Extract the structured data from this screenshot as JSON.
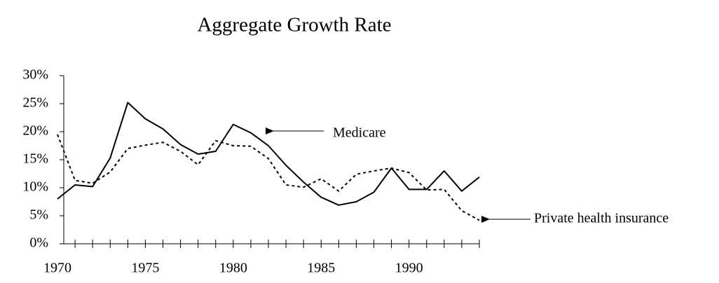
{
  "chart_data": {
    "type": "line",
    "title": "Aggregate Growth Rate",
    "x": [
      1970,
      1971,
      1972,
      1973,
      1974,
      1975,
      1976,
      1977,
      1978,
      1979,
      1980,
      1981,
      1982,
      1983,
      1984,
      1985,
      1986,
      1987,
      1988,
      1989,
      1990,
      1991,
      1992,
      1993,
      1994
    ],
    "series": [
      {
        "name": "Medicare",
        "color": "#000000",
        "style": "solid",
        "values": [
          8,
          10.5,
          10.2,
          15.3,
          25.2,
          22.3,
          20.5,
          17.7,
          16,
          16.5,
          21.3,
          19.8,
          17.5,
          14,
          11,
          8.3,
          6.9,
          7.5,
          9.2,
          13.5,
          9.7,
          9.7,
          13,
          9.4,
          11.9
        ]
      },
      {
        "name": "Private health insurance",
        "color": "#000000",
        "style": "dashed",
        "values": [
          19.5,
          11.3,
          10.8,
          12.8,
          17,
          17.6,
          18.1,
          16.5,
          14.1,
          18.4,
          17.5,
          17.4,
          15.2,
          10.5,
          10.1,
          11.6,
          9.4,
          12.4,
          13,
          13.5,
          12.7,
          9.6,
          9.7,
          5.9,
          4.2
        ]
      }
    ],
    "xlim": [
      1970,
      1994
    ],
    "xticks": [
      1970,
      1975,
      1980,
      1985,
      1990
    ],
    "ylim": [
      0,
      30
    ],
    "yticks": [
      {
        "value": 0,
        "label": "0%"
      },
      {
        "value": 5,
        "label": "5%"
      },
      {
        "value": 10,
        "label": "10%"
      },
      {
        "value": 15,
        "label": "15%"
      },
      {
        "value": 20,
        "label": "20%"
      },
      {
        "value": 25,
        "label": "25%"
      },
      {
        "value": 30,
        "label": "30%"
      }
    ],
    "grid": false
  }
}
